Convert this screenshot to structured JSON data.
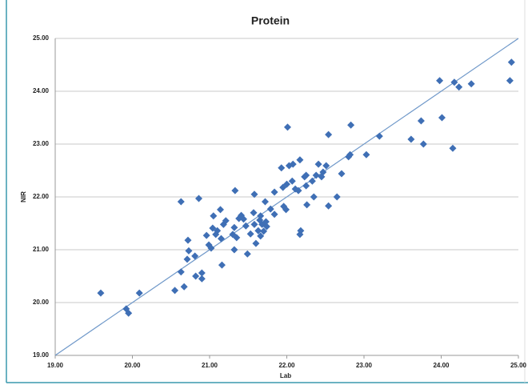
{
  "chart_data": {
    "type": "scatter",
    "title": "Protein",
    "x_label": "Lab",
    "y_label": "NIR",
    "color": "#3f6fb5",
    "x": [
      19.59,
      19.92,
      19.95,
      20.09,
      20.55,
      20.63,
      20.63,
      20.67,
      20.72,
      20.73,
      20.71,
      20.81,
      20.82,
      20.86,
      20.9,
      20.9,
      20.96,
      20.99,
      21.02,
      21.04,
      21.05,
      21.08,
      21.1,
      21.14,
      21.15,
      21.18,
      21.16,
      21.21,
      21.3,
      21.32,
      21.32,
      21.33,
      21.35,
      21.38,
      21.41,
      21.44,
      21.47,
      21.49,
      21.53,
      21.58,
      21.57,
      21.58,
      21.6,
      21.63,
      21.65,
      21.66,
      21.68,
      21.66,
      21.7,
      21.72,
      21.73,
      21.74,
      21.79,
      21.84,
      21.84,
      21.93,
      21.96,
      21.95,
      22.0,
      21.99,
      22.01,
      22.03,
      22.07,
      22.08,
      22.11,
      22.15,
      22.17,
      22.17,
      22.18,
      22.23,
      22.25,
      22.25,
      22.26,
      22.33,
      22.35,
      22.38,
      22.41,
      22.45,
      22.47,
      22.51,
      22.54,
      22.54,
      22.65,
      22.71,
      22.8,
      22.82,
      22.83,
      23.03,
      23.2,
      23.61,
      23.74,
      23.77,
      23.98,
      24.01,
      24.15,
      24.17,
      24.23,
      24.39,
      24.89,
      24.91
    ],
    "values": [
      20.18,
      19.88,
      19.8,
      20.18,
      20.23,
      21.91,
      20.58,
      20.3,
      21.18,
      20.98,
      20.82,
      20.88,
      20.5,
      21.97,
      20.56,
      20.45,
      21.27,
      21.09,
      21.03,
      21.41,
      21.64,
      21.29,
      21.36,
      21.76,
      21.21,
      21.48,
      20.71,
      21.55,
      21.29,
      21.42,
      21.0,
      22.12,
      21.23,
      21.59,
      21.65,
      21.58,
      21.45,
      20.92,
      21.3,
      22.05,
      21.7,
      21.48,
      21.12,
      21.36,
      21.56,
      21.64,
      21.48,
      21.26,
      21.35,
      21.91,
      21.53,
      21.44,
      21.77,
      21.67,
      22.09,
      22.55,
      21.82,
      22.18,
      22.24,
      21.76,
      23.32,
      22.59,
      22.3,
      22.62,
      22.15,
      22.12,
      22.7,
      21.29,
      21.36,
      22.38,
      22.41,
      22.21,
      21.85,
      22.3,
      22.0,
      22.41,
      22.62,
      22.38,
      22.47,
      22.59,
      23.18,
      21.83,
      22.0,
      22.44,
      22.76,
      22.8,
      23.36,
      22.8,
      23.15,
      23.09,
      23.44,
      23.0,
      24.2,
      23.5,
      22.92,
      24.17,
      24.08,
      24.14,
      24.2,
      24.55
    ],
    "reference_line": {
      "x": [
        19,
        25
      ],
      "y": [
        19,
        25
      ],
      "color": "#6f98c9"
    },
    "xlim": [
      19,
      25
    ],
    "ylim": [
      19,
      25
    ],
    "xticks": [
      {
        "value": 19,
        "label": "19.00"
      },
      {
        "value": 20,
        "label": "20.00"
      },
      {
        "value": 21,
        "label": "21.00"
      },
      {
        "value": 22,
        "label": "22.00"
      },
      {
        "value": 23,
        "label": "23.00"
      },
      {
        "value": 24,
        "label": "24.00"
      },
      {
        "value": 25,
        "label": "25.00"
      }
    ],
    "yticks": [
      {
        "value": 19,
        "label": "19.00"
      },
      {
        "value": 20,
        "label": "20.00"
      },
      {
        "value": 21,
        "label": "21.00"
      },
      {
        "value": 22,
        "label": "22.00"
      },
      {
        "value": 23,
        "label": "23.00"
      },
      {
        "value": 24,
        "label": "24.00"
      },
      {
        "value": 25,
        "label": "25.00"
      }
    ],
    "grid": true
  }
}
